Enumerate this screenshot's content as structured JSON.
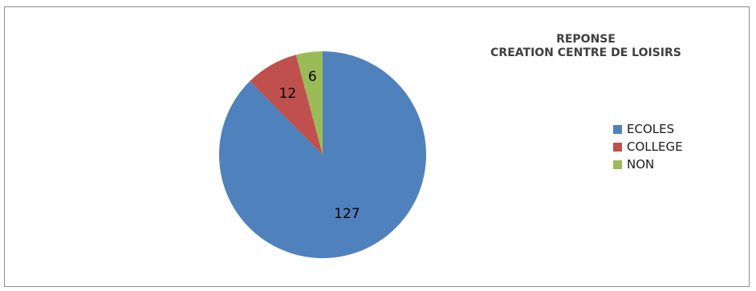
{
  "chart_data": {
    "type": "pie",
    "title_lines": [
      "REPONSE",
      "CREATION CENTRE DE LOISIRS"
    ],
    "categories": [
      "ECOLES",
      "COLLEGE",
      "NON"
    ],
    "values": [
      127,
      12,
      6
    ],
    "colors": [
      "#4f81bd",
      "#c0504d",
      "#9bbb59"
    ],
    "start_angle_deg": 0,
    "direction": "clockwise",
    "legend_position": "right",
    "data_labels": true
  }
}
